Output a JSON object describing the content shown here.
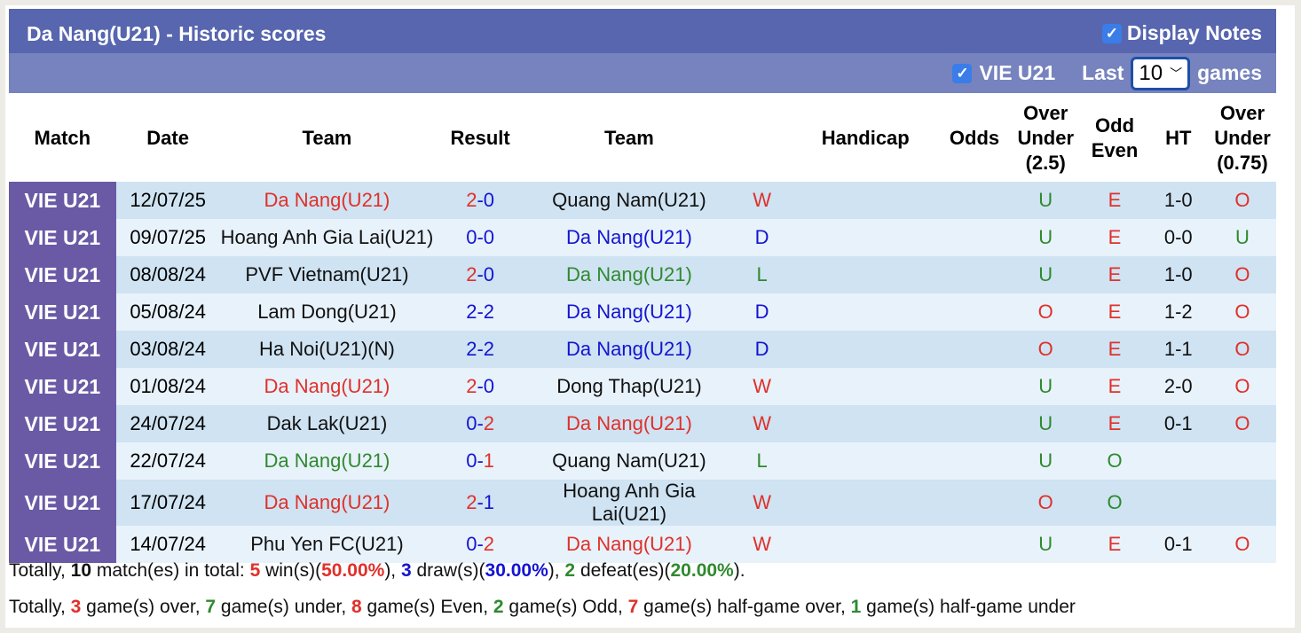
{
  "header": {
    "title": "Da Nang(U21) - Historic scores",
    "display_notes": "Display Notes",
    "league_filter": "VIE U21",
    "last_label": "Last",
    "games_count": "10",
    "games_label": "games"
  },
  "columns": [
    "Match",
    "Date",
    "Team",
    "Result",
    "Team",
    "",
    "Handicap",
    "Odds",
    "Over Under (2.5)",
    "Odd Even",
    "HT",
    "Over Under (0.75)"
  ],
  "colors": {
    "win": "#e0302a",
    "draw": "#1414d0",
    "loss": "#2f8a2f"
  },
  "rows": [
    {
      "match": "VIE U21",
      "date": "12/07/25",
      "home": "Da Nang(U21)",
      "hs": "2",
      "as": "0",
      "away": "Quang Nam(U21)",
      "res": "W",
      "hc": "",
      "odds": "",
      "ou": "U",
      "oe": "E",
      "ht": "1-0",
      "ou2": "O"
    },
    {
      "match": "VIE U21",
      "date": "09/07/25",
      "home": "Hoang Anh Gia Lai(U21)",
      "hs": "0",
      "as": "0",
      "away": "Da Nang(U21)",
      "res": "D",
      "hc": "",
      "odds": "",
      "ou": "U",
      "oe": "E",
      "ht": "0-0",
      "ou2": "U"
    },
    {
      "match": "VIE U21",
      "date": "08/08/24",
      "home": "PVF Vietnam(U21)",
      "hs": "2",
      "as": "0",
      "away": "Da Nang(U21)",
      "res": "L",
      "hc": "",
      "odds": "",
      "ou": "U",
      "oe": "E",
      "ht": "1-0",
      "ou2": "O"
    },
    {
      "match": "VIE U21",
      "date": "05/08/24",
      "home": "Lam Dong(U21)",
      "hs": "2",
      "as": "2",
      "away": "Da Nang(U21)",
      "res": "D",
      "hc": "",
      "odds": "",
      "ou": "O",
      "oe": "E",
      "ht": "1-2",
      "ou2": "O"
    },
    {
      "match": "VIE U21",
      "date": "03/08/24",
      "home": "Ha Noi(U21)(N)",
      "hs": "2",
      "as": "2",
      "away": "Da Nang(U21)",
      "res": "D",
      "hc": "",
      "odds": "",
      "ou": "O",
      "oe": "E",
      "ht": "1-1",
      "ou2": "O"
    },
    {
      "match": "VIE U21",
      "date": "01/08/24",
      "home": "Da Nang(U21)",
      "hs": "2",
      "as": "0",
      "away": "Dong Thap(U21)",
      "res": "W",
      "hc": "",
      "odds": "",
      "ou": "U",
      "oe": "E",
      "ht": "2-0",
      "ou2": "O"
    },
    {
      "match": "VIE U21",
      "date": "24/07/24",
      "home": "Dak Lak(U21)",
      "hs": "0",
      "as": "2",
      "away": "Da Nang(U21)",
      "res": "W",
      "hc": "",
      "odds": "",
      "ou": "U",
      "oe": "E",
      "ht": "0-1",
      "ou2": "O"
    },
    {
      "match": "VIE U21",
      "date": "22/07/24",
      "home": "Da Nang(U21)",
      "hs": "0",
      "as": "1",
      "away": "Quang Nam(U21)",
      "res": "L",
      "hc": "",
      "odds": "",
      "ou": "U",
      "oe": "O",
      "ht": "",
      "ou2": ""
    },
    {
      "match": "VIE U21",
      "date": "17/07/24",
      "home": "Da Nang(U21)",
      "hs": "2",
      "as": "1",
      "away": "Hoang Anh Gia Lai(U21)",
      "res": "W",
      "hc": "",
      "odds": "",
      "ou": "O",
      "oe": "O",
      "ht": "",
      "ou2": ""
    },
    {
      "match": "VIE U21",
      "date": "14/07/24",
      "home": "Phu Yen FC(U21)",
      "hs": "0",
      "as": "2",
      "away": "Da Nang(U21)",
      "res": "W",
      "hc": "",
      "odds": "",
      "ou": "U",
      "oe": "E",
      "ht": "0-1",
      "ou2": "O"
    }
  ],
  "summary1": [
    [
      "Totally, ",
      "blk",
      0
    ],
    [
      "10",
      "blk",
      1
    ],
    [
      " match(es) in total: ",
      "blk",
      0
    ],
    [
      "5",
      "red",
      1
    ],
    [
      " win(s)(",
      "blk",
      0
    ],
    [
      "50.00%",
      "red",
      1
    ],
    [
      "), ",
      "blk",
      0
    ],
    [
      "3",
      "blue",
      1
    ],
    [
      " draw(s)(",
      "blk",
      0
    ],
    [
      "30.00%",
      "blue",
      1
    ],
    [
      "), ",
      "blk",
      0
    ],
    [
      "2",
      "green",
      1
    ],
    [
      " defeat(es)(",
      "blk",
      0
    ],
    [
      "20.00%",
      "green",
      1
    ],
    [
      ").",
      "blk",
      0
    ]
  ],
  "summary2": [
    [
      "Totally, ",
      "blk",
      0
    ],
    [
      "3",
      "red",
      1
    ],
    [
      " game(s) over, ",
      "blk",
      0
    ],
    [
      "7",
      "green",
      1
    ],
    [
      " game(s) under, ",
      "blk",
      0
    ],
    [
      "8",
      "red",
      1
    ],
    [
      " game(s) Even, ",
      "blk",
      0
    ],
    [
      "2",
      "green",
      1
    ],
    [
      " game(s) Odd, ",
      "blk",
      0
    ],
    [
      "7",
      "red",
      1
    ],
    [
      " game(s) half-game over, ",
      "blk",
      0
    ],
    [
      "1",
      "green",
      1
    ],
    [
      " game(s) half-game under",
      "blk",
      0
    ]
  ]
}
